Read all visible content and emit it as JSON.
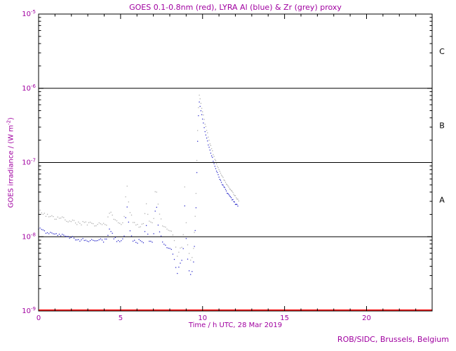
{
  "colors": {
    "text_magenta": "#a000a0",
    "frame": "#000000",
    "goes_red": "#ff0000",
    "lyra_al_blue": "#3333cc",
    "lyra_zr_grey": "#b2b2b2",
    "background": "#ffffff"
  },
  "footer": "ROB/SIDC, Brussels, Belgium",
  "chart_data": {
    "type": "scatter",
    "title": "GOES 0.1-0.8nm (red), LYRA Al (blue) & Zr (grey) proxy",
    "xlabel": "Time / h UTC, 28 Mar 2019",
    "ylabel_pre": "GOES irradiance / (W m",
    "ylabel_exp": "-2",
    "ylabel_post": ")",
    "x_range": [
      0,
      24
    ],
    "x_major_ticks": [
      0,
      5,
      10,
      15,
      20
    ],
    "x_minor_step_h": 1,
    "y_log_range": [
      -9,
      -5
    ],
    "y_tick_exponents": [
      -5,
      -6,
      -7,
      -8,
      -9
    ],
    "hlines_log": [
      -6,
      -7,
      -8
    ],
    "legend_position": "none (series colors named in title)",
    "class_labels": [
      {
        "label": "C",
        "log_center": -5.5
      },
      {
        "label": "B",
        "log_center": -6.5
      },
      {
        "label": "A",
        "log_center": -7.5
      }
    ],
    "flare_start_h": 9.4,
    "dot_step_quiet_h": 0.09,
    "dot_step_flare_h": 0.05,
    "jitter_quiet_decades": 0.04,
    "jitter_flare_decades": 0.015,
    "series": [
      {
        "name": "LYRA Zr proxy",
        "color_key": "lyra_zr_grey",
        "style": "dots",
        "points": [
          [
            0.0,
            2.2e-08
          ],
          [
            0.4,
            2e-08
          ],
          [
            0.9,
            1.85e-08
          ],
          [
            1.4,
            1.75e-08
          ],
          [
            1.9,
            1.65e-08
          ],
          [
            2.4,
            1.55e-08
          ],
          [
            2.9,
            1.5e-08
          ],
          [
            3.4,
            1.42e-08
          ],
          [
            3.9,
            1.45e-08
          ],
          [
            4.2,
            1.6e-08
          ],
          [
            4.35,
            2.3e-08
          ],
          [
            4.55,
            1.7e-08
          ],
          [
            4.9,
            1.5e-08
          ],
          [
            5.2,
            1.55e-08
          ],
          [
            5.38,
            5.2e-08
          ],
          [
            5.52,
            2.4e-08
          ],
          [
            5.75,
            1.6e-08
          ],
          [
            6.1,
            1.45e-08
          ],
          [
            6.4,
            1.5e-08
          ],
          [
            6.55,
            2.9e-08
          ],
          [
            6.75,
            1.55e-08
          ],
          [
            7.0,
            1.5e-08
          ],
          [
            7.15,
            5.6e-08
          ],
          [
            7.32,
            2.2e-08
          ],
          [
            7.6,
            1.35e-08
          ],
          [
            7.9,
            1.25e-08
          ],
          [
            8.15,
            1.1e-08
          ],
          [
            8.3,
            8.5e-09
          ],
          [
            8.45,
            5.5e-09
          ],
          [
            8.6,
            6.5e-09
          ],
          [
            8.8,
            8e-09
          ],
          [
            8.93,
            6e-08
          ],
          [
            9.02,
            1.1e-08
          ],
          [
            9.15,
            6e-09
          ],
          [
            9.3,
            4.2e-09
          ],
          [
            9.45,
            7e-09
          ],
          [
            9.58,
            2.5e-08
          ],
          [
            9.68,
            2e-07
          ],
          [
            9.78,
            8.5e-07
          ],
          [
            9.95,
            5.5e-07
          ],
          [
            10.15,
            3.3e-07
          ],
          [
            10.4,
            2e-07
          ],
          [
            10.65,
            1.3e-07
          ],
          [
            10.9,
            9e-08
          ],
          [
            11.15,
            6.8e-08
          ],
          [
            11.45,
            5.2e-08
          ],
          [
            11.75,
            4.2e-08
          ],
          [
            12.0,
            3.5e-08
          ],
          [
            12.25,
            3e-08
          ]
        ]
      },
      {
        "name": "LYRA Al proxy",
        "color_key": "lyra_al_blue",
        "style": "dots",
        "points": [
          [
            0.0,
            1.25e-08
          ],
          [
            0.4,
            1.15e-08
          ],
          [
            0.9,
            1.1e-08
          ],
          [
            1.4,
            1.05e-08
          ],
          [
            1.9,
            9.8e-09
          ],
          [
            2.4,
            9.2e-09
          ],
          [
            2.9,
            9e-09
          ],
          [
            3.4,
            8.6e-09
          ],
          [
            3.9,
            8.8e-09
          ],
          [
            4.2,
            9.5e-09
          ],
          [
            4.35,
            1.35e-08
          ],
          [
            4.55,
            1e-08
          ],
          [
            4.9,
            8.8e-09
          ],
          [
            5.2,
            9e-09
          ],
          [
            5.38,
            2.8e-08
          ],
          [
            5.52,
            1.3e-08
          ],
          [
            5.75,
            9.2e-09
          ],
          [
            6.1,
            8.5e-09
          ],
          [
            6.4,
            8.8e-09
          ],
          [
            6.55,
            1.55e-08
          ],
          [
            6.75,
            9e-09
          ],
          [
            7.0,
            8.8e-09
          ],
          [
            7.15,
            3e-08
          ],
          [
            7.32,
            1.2e-08
          ],
          [
            7.6,
            8e-09
          ],
          [
            7.9,
            7.2e-09
          ],
          [
            8.15,
            6.5e-09
          ],
          [
            8.3,
            5e-09
          ],
          [
            8.45,
            3.2e-09
          ],
          [
            8.6,
            4e-09
          ],
          [
            8.8,
            5e-09
          ],
          [
            8.93,
            3.2e-08
          ],
          [
            9.02,
            6.5e-09
          ],
          [
            9.15,
            3.8e-09
          ],
          [
            9.3,
            2.8e-09
          ],
          [
            9.45,
            4.5e-09
          ],
          [
            9.58,
            1.6e-08
          ],
          [
            9.68,
            1.4e-07
          ],
          [
            9.78,
            6.8e-07
          ],
          [
            9.95,
            4.4e-07
          ],
          [
            10.15,
            2.6e-07
          ],
          [
            10.4,
            1.6e-07
          ],
          [
            10.65,
            1.05e-07
          ],
          [
            10.9,
            7.2e-08
          ],
          [
            11.15,
            5.4e-08
          ],
          [
            11.45,
            4.1e-08
          ],
          [
            11.75,
            3.3e-08
          ],
          [
            12.0,
            2.8e-08
          ],
          [
            12.2,
            2.5e-08
          ]
        ]
      },
      {
        "name": "GOES 0.1-0.8nm",
        "color_key": "goes_red",
        "style": "line",
        "points": [
          [
            0,
            1.03e-09
          ],
          [
            24,
            1.03e-09
          ]
        ]
      }
    ]
  }
}
